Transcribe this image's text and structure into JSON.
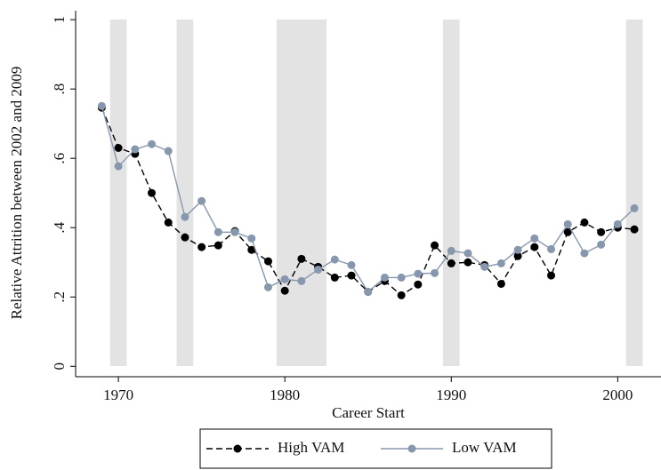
{
  "chart_data": {
    "type": "line",
    "x_label": "Career Start",
    "y_label": "Relative Attrition between 2002 and 2009",
    "x": [
      1969,
      1970,
      1971,
      1972,
      1973,
      1974,
      1975,
      1976,
      1977,
      1978,
      1979,
      1980,
      1981,
      1982,
      1983,
      1984,
      1985,
      1986,
      1987,
      1988,
      1989,
      1990,
      1991,
      1992,
      1993,
      1994,
      1995,
      1996,
      1997,
      1998,
      1999,
      2000,
      2001
    ],
    "series": [
      {
        "name": "High VAM",
        "color": "#000000",
        "line_style": "dashed",
        "values": [
          0.746,
          0.63,
          0.613,
          0.5,
          0.415,
          0.372,
          0.344,
          0.349,
          0.39,
          0.336,
          0.303,
          0.218,
          0.31,
          0.287,
          0.256,
          0.262,
          0.215,
          0.246,
          0.205,
          0.236,
          0.349,
          0.297,
          0.3,
          0.292,
          0.238,
          0.318,
          0.344,
          0.262,
          0.387,
          0.415,
          0.387,
          0.4,
          0.395
        ]
      },
      {
        "name": "Low VAM",
        "color": "#8797ad",
        "line_style": "solid",
        "values": [
          0.751,
          0.577,
          0.626,
          0.641,
          0.621,
          0.431,
          0.477,
          0.387,
          0.387,
          0.369,
          0.228,
          0.251,
          0.246,
          0.279,
          0.308,
          0.292,
          0.215,
          0.256,
          0.256,
          0.267,
          0.269,
          0.333,
          0.326,
          0.287,
          0.297,
          0.336,
          0.369,
          0.338,
          0.41,
          0.326,
          0.351,
          0.41,
          0.456
        ]
      }
    ],
    "shaded_regions": [
      [
        1969.5,
        1970.5
      ],
      [
        1973.5,
        1974.5
      ],
      [
        1979.5,
        1982.5
      ],
      [
        1989.5,
        1990.5
      ],
      [
        2000.5,
        2001.5
      ]
    ],
    "shade_color": "#e3e3e3",
    "xlim": [
      1967.43,
      2002.6
    ],
    "ylim": [
      -0.03,
      1.026
    ],
    "xticks": [
      1970,
      1980,
      1990,
      2000
    ],
    "yticks": [
      0,
      {
        "value": 0.2,
        "label": ".2"
      },
      {
        "value": 0.4,
        "label": ".4"
      },
      {
        "value": 0.6,
        "label": ".6"
      },
      {
        "value": 0.8,
        "label": ".8"
      },
      1
    ],
    "legend": "bottom"
  }
}
